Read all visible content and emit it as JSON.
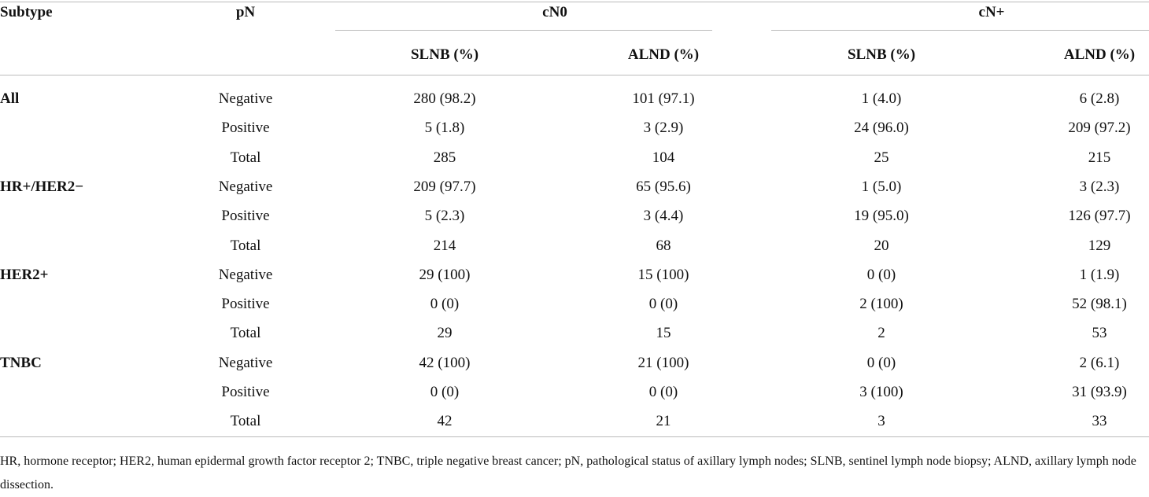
{
  "header": {
    "subtype": "Subtype",
    "pN": "pN",
    "groups": [
      {
        "label": "cN0",
        "columns": [
          "SLNB (%)",
          "ALND (%)"
        ]
      },
      {
        "label": "cN+",
        "columns": [
          "SLNB (%)",
          "ALND (%)"
        ]
      }
    ]
  },
  "table": {
    "groups": [
      {
        "subtype": "All",
        "rows": [
          [
            "Negative",
            "280 (98.2)",
            "101 (97.1)",
            "1 (4.0)",
            "6 (2.8)"
          ],
          [
            "Positive",
            "5 (1.8)",
            "3 (2.9)",
            "24 (96.0)",
            "209 (97.2)"
          ],
          [
            "Total",
            "285",
            "104",
            "25",
            "215"
          ]
        ]
      },
      {
        "subtype": "HR+/HER2−",
        "rows": [
          [
            "Negative",
            "209 (97.7)",
            "65 (95.6)",
            "1 (5.0)",
            "3 (2.3)"
          ],
          [
            "Positive",
            "5 (2.3)",
            "3 (4.4)",
            "19 (95.0)",
            "126 (97.7)"
          ],
          [
            "Total",
            "214",
            "68",
            "20",
            "129"
          ]
        ]
      },
      {
        "subtype": "HER2+",
        "rows": [
          [
            "Negative",
            "29 (100)",
            "15 (100)",
            "0 (0)",
            "1 (1.9)"
          ],
          [
            "Positive",
            "0 (0)",
            "0 (0)",
            "2 (100)",
            "52 (98.1)"
          ],
          [
            "Total",
            "29",
            "15",
            "2",
            "53"
          ]
        ]
      },
      {
        "subtype": "TNBC",
        "rows": [
          [
            "Negative",
            "42 (100)",
            "21 (100)",
            "0 (0)",
            "2 (6.1)"
          ],
          [
            "Positive",
            "0 (0)",
            "0 (0)",
            "3 (100)",
            "31 (93.9)"
          ],
          [
            "Total",
            "42",
            "21",
            "3",
            "33"
          ]
        ]
      }
    ]
  },
  "footnote": "HR, hormone receptor; HER2, human epidermal growth factor receptor 2; TNBC, triple negative breast cancer; pN, pathological status of axillary lymph nodes; SLNB, sentinel lymph node biopsy; ALND, axillary lymph node dissection."
}
